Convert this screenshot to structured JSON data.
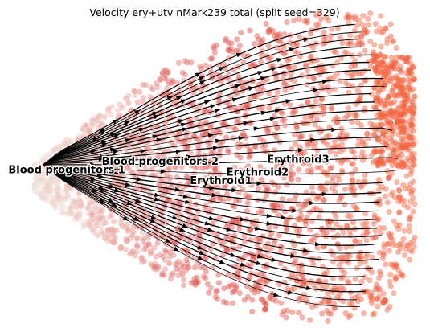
{
  "chart_data": {
    "type": "scatter",
    "title": "Velocity ery+utv nMark239 total (split seed=329)",
    "xlabel": "",
    "ylabel": "",
    "axes_visible": false,
    "grid": false,
    "overlay": "velocity streamlines",
    "color_gradient": [
      "#f1e7df",
      "#dd4a47",
      "#f4623b"
    ],
    "clusters": [
      {
        "name": "Blood progenitors 1",
        "x": -7.5,
        "y": -0.1
      },
      {
        "name": "Blood progenitors 2",
        "x": -2.9,
        "y": 0.3
      },
      {
        "name": "Erythroid1",
        "x": 0.1,
        "y": -0.6
      },
      {
        "name": "Erythroid2",
        "x": 1.9,
        "y": -0.2
      },
      {
        "name": "Erythroid3",
        "x": 3.9,
        "y": 0.4
      }
    ],
    "xlim": [
      -10,
      10
    ],
    "ylim": [
      -7,
      7
    ]
  }
}
